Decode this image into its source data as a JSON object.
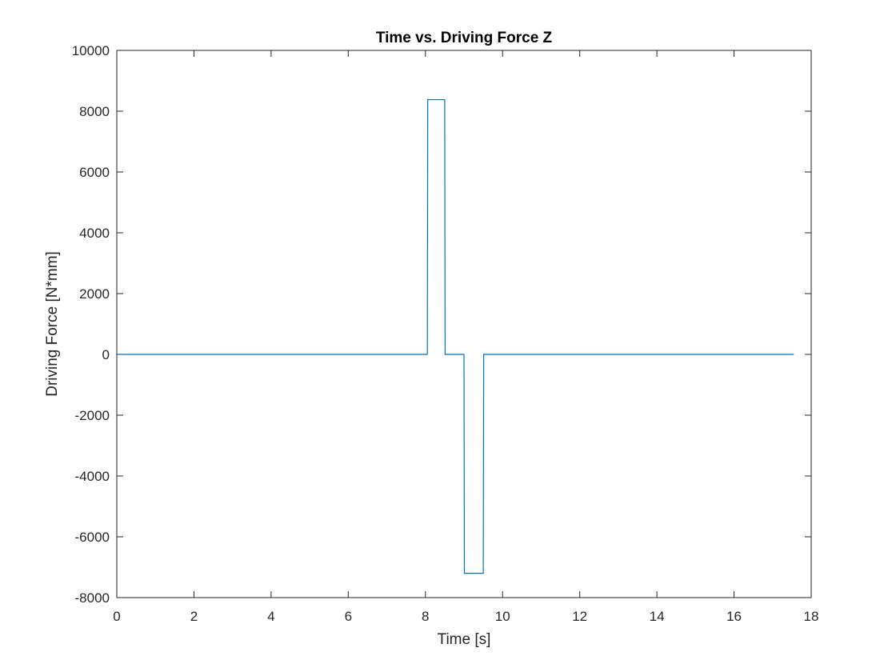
{
  "chart_data": {
    "type": "line",
    "title": "Time vs. Driving Force Z",
    "xlabel": "Time [s]",
    "ylabel": "Driving Force [N*mm]",
    "xlim": [
      0,
      18
    ],
    "ylim": [
      -8000,
      10000
    ],
    "xticks": [
      0,
      2,
      4,
      6,
      8,
      10,
      12,
      14,
      16,
      18
    ],
    "yticks": [
      -8000,
      -6000,
      -4000,
      -2000,
      0,
      2000,
      4000,
      6000,
      8000,
      10000
    ],
    "xtick_labels": [
      "0",
      "2",
      "4",
      "6",
      "8",
      "10",
      "12",
      "14",
      "16",
      "18"
    ],
    "ytick_labels": [
      "-8000",
      "-6000",
      "-4000",
      "-2000",
      "0",
      "2000",
      "4000",
      "6000",
      "8000",
      "10000"
    ],
    "grid": false,
    "legend": false,
    "series": [
      {
        "color": "#0072BD",
        "x": [
          0,
          8.05,
          8.06,
          8.5,
          8.51,
          9.0,
          9.01,
          9.5,
          9.51,
          17.55
        ],
        "y": [
          0,
          0,
          8380,
          8380,
          0,
          0,
          -7200,
          -7200,
          0,
          0
        ]
      }
    ]
  }
}
